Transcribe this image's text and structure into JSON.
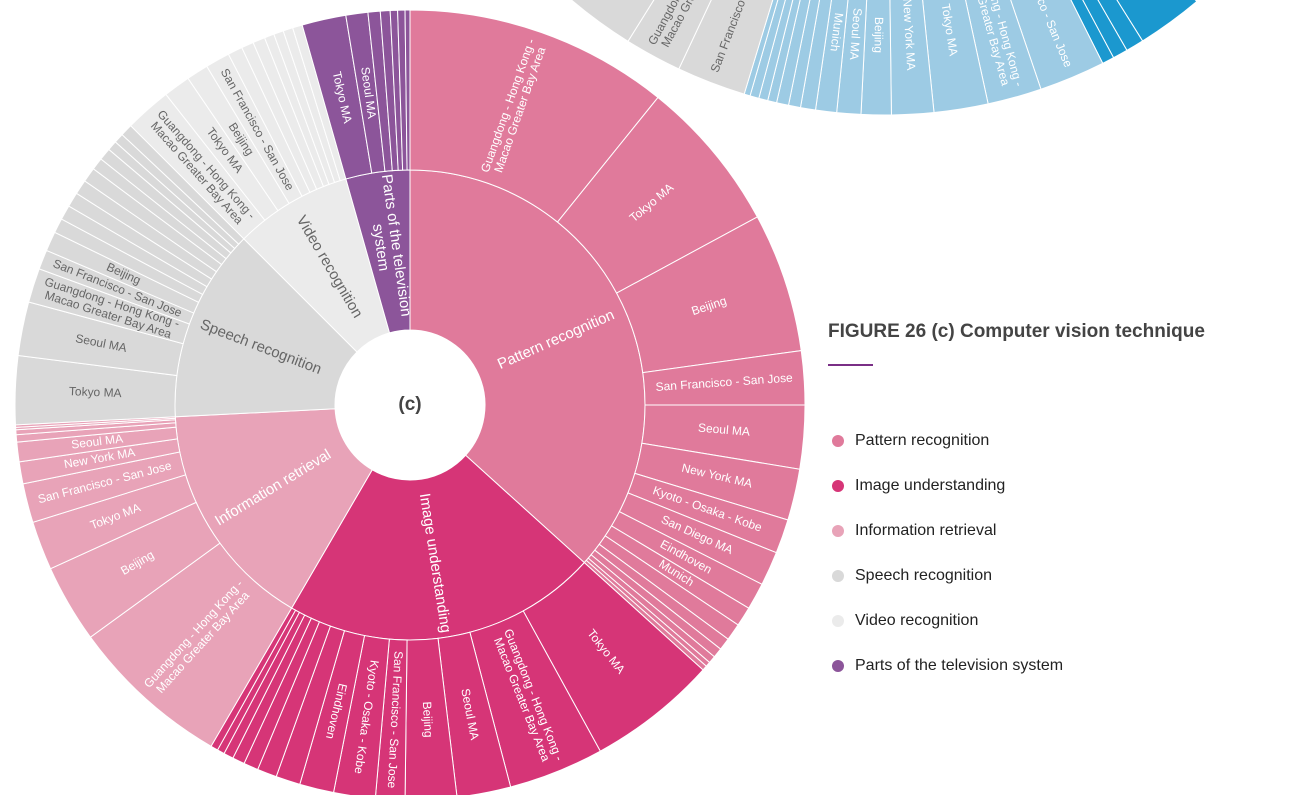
{
  "chart_data": [
    {
      "type": "sunburst",
      "series": [
        {
          "color": "#1b98cf",
          "label_color": "#ffffff",
          "children": [
            {
              "label": null,
              "value": 2.2
            },
            {
              "label": null,
              "value": 0.6
            },
            {
              "label": null,
              "value": 0.5
            },
            {
              "label": null,
              "value": 0.4
            }
          ]
        },
        {
          "color": "#9dcbe4",
          "label_color": "#ffffff",
          "children": [
            {
              "label": [
                "San Francisco - San Jose"
              ],
              "value": 2.2
            },
            {
              "label": [
                "Guangdong - Hong Kong -",
                "Macao Greater Bay Area"
              ],
              "value": 1.8
            },
            {
              "label": [
                "Tokyo MA"
              ],
              "value": 1.8
            },
            {
              "label": [
                "New York MA"
              ],
              "value": 1.4
            },
            {
              "label": [
                "Beijing"
              ],
              "value": 1.0
            },
            {
              "label": [
                "Seoul MA"
              ],
              "value": 0.8
            },
            {
              "label": [
                "Munich"
              ],
              "value": 0.7
            },
            {
              "label": null,
              "value": 0.5
            },
            {
              "label": null,
              "value": 0.4
            },
            {
              "label": null,
              "value": 0.4
            },
            {
              "label": null,
              "value": 0.3
            },
            {
              "label": null,
              "value": 0.3
            },
            {
              "label": null,
              "value": 0.3
            },
            {
              "label": null,
              "value": 0.2
            }
          ]
        },
        {
          "color": "#d9d9d9",
          "label_color": "#666666",
          "children": [
            {
              "label": [
                "San Francisco - San Jose"
              ],
              "value": 2.3
            },
            {
              "label": [
                "Guangdong - Hong Kong -",
                "Macao Greater Bay Area"
              ],
              "value": 1.9
            },
            {
              "label": null,
              "value": 3.0
            },
            {
              "label": null,
              "value": 2.0
            }
          ]
        }
      ]
    },
    {
      "type": "sunburst",
      "title": "FIGURE 26 (c) Computer vision technique",
      "center_label": "(c)",
      "series": [
        {
          "name": "Pattern recognition",
          "label": [
            "Pattern recognition"
          ],
          "value": 36.7,
          "color": "#e07a9b",
          "label_color": "#ffffff",
          "children": [
            {
              "label": [
                "Guangdong - Hong Kong -",
                "Macao Greater Bay Area"
              ],
              "value": 10.8
            },
            {
              "label": [
                "Tokyo MA"
              ],
              "value": 6.3
            },
            {
              "label": [
                "Beijing"
              ],
              "value": 5.7
            },
            {
              "label": [
                "San Francisco - San Jose"
              ],
              "value": 2.2
            },
            {
              "label": [
                "Seoul MA"
              ],
              "value": 2.6
            },
            {
              "label": [
                "New York MA"
              ],
              "value": 2.1
            },
            {
              "label": [
                "Kyoto - Osaka - Kobe"
              ],
              "value": 1.4
            },
            {
              "label": [
                "San Diego MA"
              ],
              "value": 1.4
            },
            {
              "label": [
                "Eindhoven"
              ],
              "value": 1.1
            },
            {
              "label": [
                "Munich"
              ],
              "value": 0.8
            },
            {
              "label": null,
              "value": 0.7
            },
            {
              "label": null,
              "value": 0.5
            },
            {
              "label": null,
              "value": 0.4
            },
            {
              "label": null,
              "value": 0.3
            },
            {
              "label": null,
              "value": 0.2
            },
            {
              "label": null,
              "value": 0.2
            }
          ]
        },
        {
          "name": "Image understanding",
          "label": [
            "Image understanding"
          ],
          "value": 21.7,
          "color": "#d63577",
          "label_color": "#ffffff",
          "children": [
            {
              "label": [
                "Tokyo MA"
              ],
              "value": 5.3
            },
            {
              "label": [
                "Guangdong - Hong Kong -",
                "Macao Greater Bay Area"
              ],
              "value": 3.9
            },
            {
              "label": [
                "Seoul MA"
              ],
              "value": 2.2
            },
            {
              "label": [
                "Beijing"
              ],
              "value": 2.1
            },
            {
              "label": [
                "San Francisco - San Jose"
              ],
              "value": 1.2
            },
            {
              "label": [
                "Kyoto - Osaka - Kobe"
              ],
              "value": 1.7
            },
            {
              "label": [
                "Eindhoven"
              ],
              "value": 1.4
            },
            {
              "label": null,
              "value": 1.0
            },
            {
              "label": null,
              "value": 0.8
            },
            {
              "label": null,
              "value": 0.6
            },
            {
              "label": null,
              "value": 0.5
            },
            {
              "label": null,
              "value": 0.4
            },
            {
              "label": null,
              "value": 0.3
            },
            {
              "label": null,
              "value": 0.3
            }
          ]
        },
        {
          "name": "Information retrieval",
          "label": [
            "Information retrieval"
          ],
          "value": 15.8,
          "color": "#e8a3b8",
          "label_color": "#ffffff",
          "children": [
            {
              "label": [
                "Guangdong - Hong Kong -",
                "Macao Greater Bay Area"
              ],
              "value": 6.6
            },
            {
              "label": [
                "Beijing"
              ],
              "value": 3.2
            },
            {
              "label": [
                "Tokyo MA"
              ],
              "value": 2.0
            },
            {
              "label": [
                "San Francisco - San Jose"
              ],
              "value": 1.6
            },
            {
              "label": [
                "New York MA"
              ],
              "value": 0.9
            },
            {
              "label": [
                "Seoul MA"
              ],
              "value": 0.8
            },
            {
              "label": null,
              "value": 0.3
            },
            {
              "label": null,
              "value": 0.2
            },
            {
              "label": null,
              "value": 0.1
            },
            {
              "label": null,
              "value": 0.1
            }
          ]
        },
        {
          "name": "Speech recognition",
          "label": [
            "Speech recognition"
          ],
          "value": 13.3,
          "color": "#d9d9d9",
          "label_color": "#666666",
          "children": [
            {
              "label": [
                "Tokyo MA"
              ],
              "value": 2.8
            },
            {
              "label": [
                "Seoul MA"
              ],
              "value": 2.2
            },
            {
              "label": [
                "Guangdong - Hong Kong -",
                "Macao Greater Bay Area"
              ],
              "value": 1.4
            },
            {
              "label": [
                "San Francisco - San Jose"
              ],
              "value": 0.8
            },
            {
              "label": [
                "Beijing"
              ],
              "value": 0.8
            },
            {
              "label": null,
              "value": 0.6
            },
            {
              "label": null,
              "value": 0.6
            },
            {
              "label": null,
              "value": 0.6
            },
            {
              "label": null,
              "value": 0.6
            },
            {
              "label": null,
              "value": 0.6
            },
            {
              "label": null,
              "value": 0.5
            },
            {
              "label": null,
              "value": 0.5
            },
            {
              "label": null,
              "value": 0.4
            },
            {
              "label": null,
              "value": 0.4
            },
            {
              "label": null,
              "value": 0.5
            }
          ]
        },
        {
          "name": "Video recognition",
          "label": [
            "Video recognition"
          ],
          "value": 8.1,
          "color": "#ebebeb",
          "label_color": "#666666",
          "children": [
            {
              "label": [
                "Guangdong - Hong Kong -",
                "Macao Greater Bay Area"
              ],
              "value": 1.9
            },
            {
              "label": [
                "Tokyo MA"
              ],
              "value": 1.1
            },
            {
              "label": [
                "Beijing"
              ],
              "value": 0.9
            },
            {
              "label": [
                "San Francisco - San Jose"
              ],
              "value": 1.0
            },
            {
              "label": null,
              "value": 0.6
            },
            {
              "label": null,
              "value": 0.5
            },
            {
              "label": null,
              "value": 0.5
            },
            {
              "label": null,
              "value": 0.4
            },
            {
              "label": null,
              "value": 0.4
            },
            {
              "label": null,
              "value": 0.4
            },
            {
              "label": null,
              "value": 0.4
            }
          ]
        },
        {
          "name": "Parts of the television system",
          "label": [
            "Parts of the television",
            "system"
          ],
          "value": 4.4,
          "color": "#8c559a",
          "label_color": "#ffffff",
          "children": [
            {
              "label": [
                "Tokyo MA"
              ],
              "value": 1.8
            },
            {
              "label": [
                "Seoul MA"
              ],
              "value": 0.9
            },
            {
              "label": null,
              "value": 0.5
            },
            {
              "label": null,
              "value": 0.4
            },
            {
              "label": null,
              "value": 0.3
            },
            {
              "label": null,
              "value": 0.3
            },
            {
              "label": null,
              "value": 0.2
            }
          ]
        }
      ]
    }
  ]
}
